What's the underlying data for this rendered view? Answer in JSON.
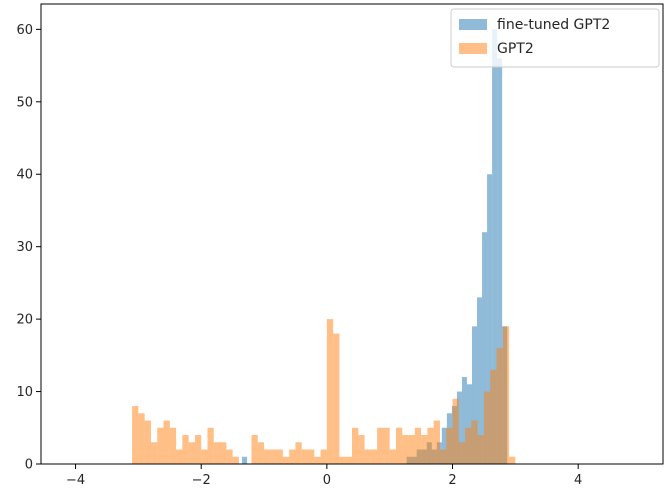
{
  "chart_data": {
    "type": "bar",
    "title": "",
    "xlabel": "",
    "ylabel": "",
    "xlim": [
      -4.55,
      5.35
    ],
    "ylim": [
      0,
      63.5
    ],
    "xticks": [
      -4,
      -2,
      0,
      2,
      4
    ],
    "xtick_labels": [
      "−4",
      "−2",
      "0",
      "2",
      "4"
    ],
    "yticks": [
      0,
      10,
      20,
      30,
      40,
      50,
      60
    ],
    "ytick_labels": [
      "0",
      "10",
      "20",
      "30",
      "40",
      "50",
      "60"
    ],
    "grid": false,
    "legend_position": "top-right",
    "series": [
      {
        "name": "fine-tuned GPT2",
        "color": "#1f77b4",
        "bars": [
          {
            "x0": -1.35,
            "x1": -1.27,
            "y": 1
          },
          {
            "x0": 1.27,
            "x1": 1.35,
            "y": 1
          },
          {
            "x0": 1.35,
            "x1": 1.43,
            "y": 1
          },
          {
            "x0": 1.43,
            "x1": 1.51,
            "y": 2
          },
          {
            "x0": 1.51,
            "x1": 1.59,
            "y": 2
          },
          {
            "x0": 1.59,
            "x1": 1.67,
            "y": 3
          },
          {
            "x0": 1.67,
            "x1": 1.75,
            "y": 2
          },
          {
            "x0": 1.75,
            "x1": 1.83,
            "y": 3
          },
          {
            "x0": 1.83,
            "x1": 1.91,
            "y": 5
          },
          {
            "x0": 1.91,
            "x1": 1.99,
            "y": 7
          },
          {
            "x0": 1.99,
            "x1": 2.07,
            "y": 8
          },
          {
            "x0": 2.07,
            "x1": 2.15,
            "y": 10
          },
          {
            "x0": 2.15,
            "x1": 2.23,
            "y": 12
          },
          {
            "x0": 2.23,
            "x1": 2.31,
            "y": 11
          },
          {
            "x0": 2.31,
            "x1": 2.39,
            "y": 19
          },
          {
            "x0": 2.39,
            "x1": 2.47,
            "y": 23
          },
          {
            "x0": 2.47,
            "x1": 2.55,
            "y": 32
          },
          {
            "x0": 2.55,
            "x1": 2.63,
            "y": 40
          },
          {
            "x0": 2.63,
            "x1": 2.71,
            "y": 60
          },
          {
            "x0": 2.71,
            "x1": 2.79,
            "y": 56
          },
          {
            "x0": 2.79,
            "x1": 2.87,
            "y": 19
          }
        ]
      },
      {
        "name": "GPT2",
        "color": "#ff7f0e",
        "bars": [
          {
            "x0": -3.1,
            "x1": -3.0,
            "y": 8
          },
          {
            "x0": -3.0,
            "x1": -2.9,
            "y": 7
          },
          {
            "x0": -2.9,
            "x1": -2.8,
            "y": 6
          },
          {
            "x0": -2.8,
            "x1": -2.7,
            "y": 3
          },
          {
            "x0": -2.7,
            "x1": -2.6,
            "y": 5
          },
          {
            "x0": -2.6,
            "x1": -2.5,
            "y": 6
          },
          {
            "x0": -2.5,
            "x1": -2.4,
            "y": 5
          },
          {
            "x0": -2.4,
            "x1": -2.3,
            "y": 2
          },
          {
            "x0": -2.3,
            "x1": -2.2,
            "y": 4
          },
          {
            "x0": -2.2,
            "x1": -2.1,
            "y": 3
          },
          {
            "x0": -2.1,
            "x1": -2.0,
            "y": 4
          },
          {
            "x0": -2.0,
            "x1": -1.9,
            "y": 2
          },
          {
            "x0": -1.9,
            "x1": -1.8,
            "y": 5
          },
          {
            "x0": -1.8,
            "x1": -1.7,
            "y": 3
          },
          {
            "x0": -1.7,
            "x1": -1.6,
            "y": 3
          },
          {
            "x0": -1.6,
            "x1": -1.5,
            "y": 2
          },
          {
            "x0": -1.5,
            "x1": -1.4,
            "y": 1
          },
          {
            "x0": -1.2,
            "x1": -1.1,
            "y": 4
          },
          {
            "x0": -1.1,
            "x1": -1.0,
            "y": 3
          },
          {
            "x0": -1.0,
            "x1": -0.9,
            "y": 2
          },
          {
            "x0": -0.9,
            "x1": -0.8,
            "y": 2
          },
          {
            "x0": -0.8,
            "x1": -0.7,
            "y": 2
          },
          {
            "x0": -0.7,
            "x1": -0.6,
            "y": 1
          },
          {
            "x0": -0.6,
            "x1": -0.5,
            "y": 2
          },
          {
            "x0": -0.5,
            "x1": -0.4,
            "y": 3
          },
          {
            "x0": -0.4,
            "x1": -0.3,
            "y": 2
          },
          {
            "x0": -0.3,
            "x1": -0.2,
            "y": 2
          },
          {
            "x0": -0.2,
            "x1": -0.1,
            "y": 1
          },
          {
            "x0": -0.1,
            "x1": 0.0,
            "y": 2
          },
          {
            "x0": 0.0,
            "x1": 0.1,
            "y": 20
          },
          {
            "x0": 0.1,
            "x1": 0.2,
            "y": 18
          },
          {
            "x0": 0.2,
            "x1": 0.3,
            "y": 1
          },
          {
            "x0": 0.3,
            "x1": 0.4,
            "y": 1
          },
          {
            "x0": 0.4,
            "x1": 0.5,
            "y": 5
          },
          {
            "x0": 0.5,
            "x1": 0.6,
            "y": 4
          },
          {
            "x0": 0.6,
            "x1": 0.7,
            "y": 2
          },
          {
            "x0": 0.7,
            "x1": 0.8,
            "y": 2
          },
          {
            "x0": 0.8,
            "x1": 0.9,
            "y": 5
          },
          {
            "x0": 0.9,
            "x1": 1.0,
            "y": 5
          },
          {
            "x0": 1.0,
            "x1": 1.1,
            "y": 2
          },
          {
            "x0": 1.1,
            "x1": 1.2,
            "y": 5
          },
          {
            "x0": 1.2,
            "x1": 1.3,
            "y": 4
          },
          {
            "x0": 1.3,
            "x1": 1.4,
            "y": 4
          },
          {
            "x0": 1.4,
            "x1": 1.5,
            "y": 5
          },
          {
            "x0": 1.5,
            "x1": 1.6,
            "y": 4
          },
          {
            "x0": 1.6,
            "x1": 1.7,
            "y": 5
          },
          {
            "x0": 1.7,
            "x1": 1.8,
            "y": 6
          },
          {
            "x0": 1.8,
            "x1": 1.9,
            "y": 2
          },
          {
            "x0": 1.9,
            "x1": 2.0,
            "y": 5
          },
          {
            "x0": 2.0,
            "x1": 2.1,
            "y": 9
          },
          {
            "x0": 2.1,
            "x1": 2.2,
            "y": 3
          },
          {
            "x0": 2.2,
            "x1": 2.3,
            "y": 5
          },
          {
            "x0": 2.3,
            "x1": 2.4,
            "y": 6
          },
          {
            "x0": 2.4,
            "x1": 2.5,
            "y": 4
          },
          {
            "x0": 2.5,
            "x1": 2.6,
            "y": 10
          },
          {
            "x0": 2.6,
            "x1": 2.7,
            "y": 13
          },
          {
            "x0": 2.7,
            "x1": 2.8,
            "y": 16
          },
          {
            "x0": 2.8,
            "x1": 2.9,
            "y": 19
          },
          {
            "x0": 2.9,
            "x1": 3.0,
            "y": 1
          }
        ]
      }
    ]
  }
}
